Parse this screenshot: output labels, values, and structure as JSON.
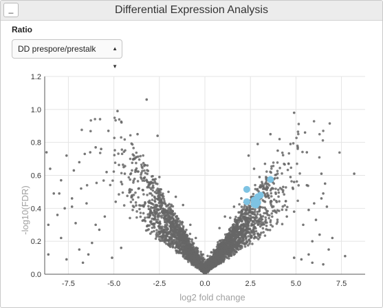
{
  "panel": {
    "title": "Differential Expression Analysis",
    "collapse_label": "_"
  },
  "controls": {
    "ratio_label": "Ratio",
    "ratio_selected": "DD prespore/prestalk",
    "arrows": "▲\n▼"
  },
  "chart_data": {
    "type": "scatter",
    "title": "",
    "xlabel": "log2 fold change",
    "ylabel": "-log10(FDR)",
    "xlim": [
      -8.8,
      8.8
    ],
    "ylim": [
      0,
      1.2
    ],
    "xticks": [
      -7.5,
      -5.0,
      -2.5,
      0.0,
      2.5,
      5.0,
      7.5
    ],
    "xtick_labels": [
      "-7.5",
      "-5.0",
      "-2.5",
      "0.0",
      "2.5",
      "5.0",
      "7.5"
    ],
    "yticks": [
      0.0,
      0.2,
      0.4,
      0.6,
      0.8,
      1.0,
      1.2
    ],
    "ytick_labels": [
      "0.0",
      "0.2",
      "0.4",
      "0.6",
      "0.8",
      "1.0",
      "1.2"
    ],
    "grid": true,
    "series": [
      {
        "color": "#666666",
        "points": [
          [
            -3.2,
            1.06
          ],
          [
            -4.8,
            0.99
          ],
          [
            -5.3,
            0.87
          ],
          [
            -3.7,
            0.85
          ],
          [
            -2.6,
            0.84
          ],
          [
            -8.7,
            0.74
          ],
          [
            -6.0,
            0.77
          ],
          [
            -5.7,
            0.76
          ],
          [
            -7.6,
            0.72
          ],
          [
            -6.3,
            0.74
          ],
          [
            -6.6,
            0.73
          ],
          [
            -6.9,
            0.68
          ],
          [
            -7.2,
            0.63
          ],
          [
            -8.5,
            0.64
          ],
          [
            -7.9,
            0.57
          ],
          [
            -5.4,
            0.62
          ],
          [
            -6.8,
            0.52
          ],
          [
            -4.4,
            0.61
          ],
          [
            -8.3,
            0.49
          ],
          [
            -7.3,
            0.46
          ],
          [
            -8.0,
            0.49
          ],
          [
            -6.5,
            0.43
          ],
          [
            -7.7,
            0.4
          ],
          [
            -8.1,
            0.36
          ],
          [
            -7.1,
            0.31
          ],
          [
            -8.6,
            0.3
          ],
          [
            -5.8,
            0.27
          ],
          [
            -7.9,
            0.22
          ],
          [
            -6.2,
            0.19
          ],
          [
            -6.4,
            0.12
          ],
          [
            -7.6,
            0.09
          ],
          [
            -5.1,
            0.1
          ],
          [
            -4.6,
            0.16
          ],
          [
            -6.9,
            0.15
          ],
          [
            -8.6,
            0.12
          ],
          [
            -6.7,
            0.07
          ],
          [
            -7.3,
            0.41
          ],
          [
            -4.9,
            0.44
          ],
          [
            -5.5,
            0.35
          ],
          [
            -6.0,
            0.3
          ],
          [
            -3.9,
            0.72
          ],
          [
            -4.6,
            0.56
          ],
          [
            -4.1,
            0.5
          ],
          [
            -2.5,
            0.59
          ],
          [
            -3.0,
            0.55
          ],
          [
            4.9,
            0.98
          ],
          [
            5.5,
            0.86
          ],
          [
            3.6,
            0.85
          ],
          [
            4.1,
            0.82
          ],
          [
            2.9,
            0.79
          ],
          [
            4.7,
            0.79
          ],
          [
            5.1,
            0.77
          ],
          [
            5.6,
            0.74
          ],
          [
            8.2,
            0.61
          ],
          [
            6.4,
            0.61
          ],
          [
            4.7,
            0.59
          ],
          [
            4.9,
            0.56
          ],
          [
            6.6,
            0.55
          ],
          [
            5.6,
            0.54
          ],
          [
            4.3,
            0.53
          ],
          [
            6.5,
            0.49
          ],
          [
            6.4,
            0.46
          ],
          [
            6.0,
            0.43
          ],
          [
            6.7,
            0.41
          ],
          [
            5.7,
            0.39
          ],
          [
            4.9,
            0.38
          ],
          [
            4.5,
            0.35
          ],
          [
            5.4,
            0.3
          ],
          [
            6.3,
            0.24
          ],
          [
            7.0,
            0.22
          ],
          [
            5.9,
            0.2
          ],
          [
            6.8,
            0.15
          ],
          [
            5.7,
            0.12
          ],
          [
            6.5,
            0.06
          ],
          [
            7.7,
            0.11
          ],
          [
            5.3,
            0.09
          ],
          [
            5.9,
            0.07
          ],
          [
            4.9,
            0.1
          ],
          [
            6.1,
            0.33
          ],
          [
            3.3,
            0.67
          ],
          [
            2.4,
            0.72
          ],
          [
            4.0,
            0.75
          ],
          [
            3.0,
            0.59
          ],
          [
            2.7,
            0.64
          ],
          [
            4.6,
            0.67
          ],
          [
            -1.2,
            0.42
          ],
          [
            -0.8,
            0.3
          ],
          [
            1.1,
            0.35
          ],
          [
            1.6,
            0.41
          ],
          [
            0.8,
            0.28
          ],
          [
            -1.6,
            0.47
          ],
          [
            2.0,
            0.46
          ],
          [
            -2.0,
            0.5
          ],
          [
            2.2,
            0.52
          ],
          [
            -0.5,
            0.22
          ]
        ]
      },
      {
        "color": "#7ec3e3",
        "points": [
          [
            2.3,
            0.515
          ],
          [
            3.6,
            0.575
          ],
          [
            2.9,
            0.47
          ],
          [
            3.05,
            0.48
          ],
          [
            2.3,
            0.44
          ],
          [
            2.7,
            0.45
          ],
          [
            2.9,
            0.435
          ],
          [
            2.8,
            0.42
          ],
          [
            2.7,
            0.425
          ]
        ]
      }
    ]
  }
}
